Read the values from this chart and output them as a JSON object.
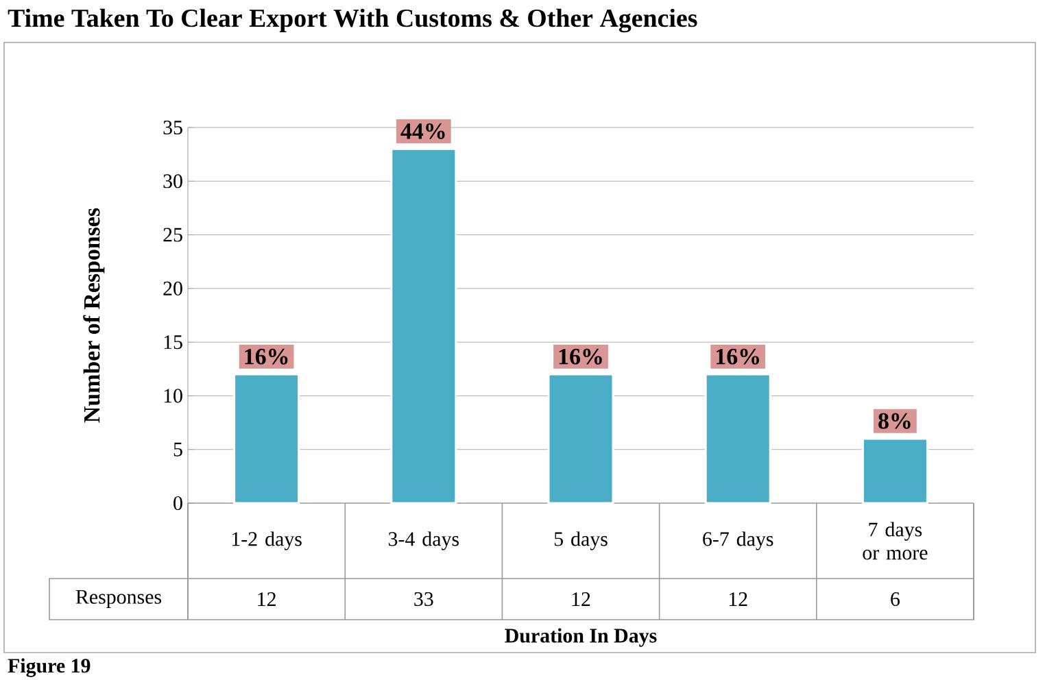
{
  "chart_data": {
    "type": "bar",
    "title": "Time Taken To Clear Export With Customs & Other Agencies",
    "xlabel": "Duration In Days",
    "ylabel": "Number of Responses",
    "categories": [
      "1-2 days",
      "3-4 days",
      "5 days",
      "6-7 days",
      "7 days or more"
    ],
    "series": [
      {
        "name": "Responses",
        "color": "#4bacc6",
        "values": [
          12,
          33,
          12,
          12,
          6
        ],
        "value_labels": [
          "12",
          "33",
          "12",
          "12",
          "6"
        ]
      }
    ],
    "ylim": [
      0,
      35
    ],
    "yticks": [
      0,
      5,
      10,
      15,
      20,
      25,
      30,
      35
    ],
    "grid": "y",
    "legend": false,
    "annotations": [
      {
        "text": "16%",
        "x": "1-2 days",
        "y": 12
      },
      {
        "text": "44%",
        "x": "3-4 days",
        "y": 33
      },
      {
        "text": "16%",
        "x": "5 days",
        "y": 12
      },
      {
        "text": "16%",
        "x": "6-7 days",
        "y": 12
      },
      {
        "text": "8%",
        "x": "7 days or more",
        "y": 6
      },
      "Figure 19"
    ]
  }
}
